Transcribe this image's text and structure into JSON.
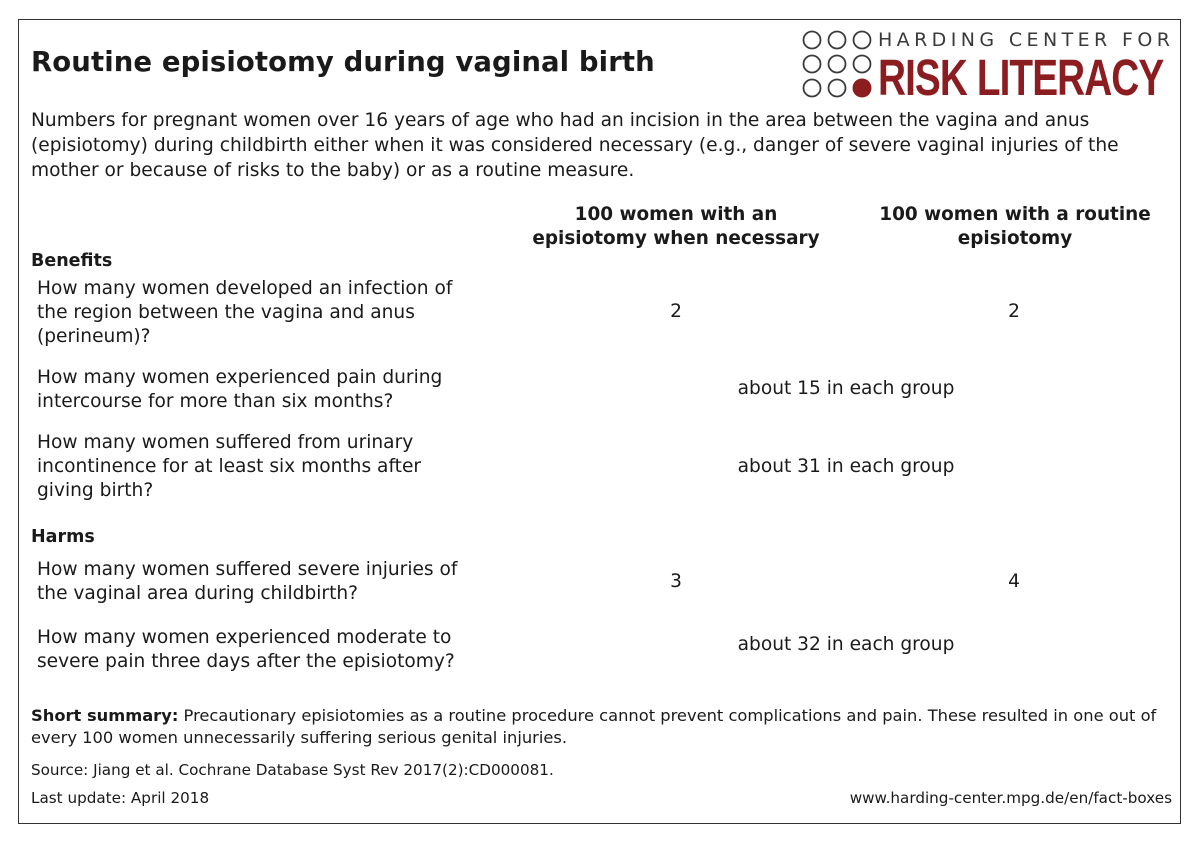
{
  "title": "Routine episiotomy during vaginal birth",
  "logo": {
    "line1": "HARDING CENTER FOR",
    "line2": "RISK LITERACY",
    "brand_color": "#8b1d20"
  },
  "intro": "Numbers for pregnant women over 16 years of age who had an incision in the area between the vagina and anus (episiotomy) during childbirth either when it was considered necessary (e.g., danger of severe vaginal injuries of the mother or because of risks to the baby) or as a routine measure.",
  "columns": {
    "col1_line1": "100 women with an",
    "col1_line2": "episiotomy when necessary",
    "col2_line1": "100 women with a routine",
    "col2_line2": "episiotomy"
  },
  "benefits": {
    "heading": "Benefits",
    "rows": [
      {
        "q_lines": [
          "How many women developed an infection of",
          "the region between the vagina and anus",
          "(perineum)?"
        ],
        "necessary": "2",
        "routine": "2"
      },
      {
        "q_lines": [
          "How many women experienced pain during",
          "intercourse for more than six months?"
        ],
        "both": "about 15 in each group"
      },
      {
        "q_lines": [
          "How many women suffered from urinary",
          "incontinence for at least six months after",
          "giving birth?"
        ],
        "both": "about 31 in each group"
      }
    ]
  },
  "harms": {
    "heading": "Harms",
    "rows": [
      {
        "q_lines": [
          "How many women suffered severe injuries of",
          "the vaginal area during childbirth?"
        ],
        "necessary": "3",
        "routine": "4"
      },
      {
        "q_lines": [
          "How many women experienced moderate to",
          "severe pain three days after the episiotomy?"
        ],
        "both": "about 32 in each group"
      }
    ]
  },
  "summary": {
    "label": "Short summary:",
    "text": "Precautionary episiotomies as a routine procedure cannot prevent complications and pain. These resulted in one out of every 100 women unnecessarily suffering serious genital injuries."
  },
  "source": "Source: Jiang et al. Cochrane Database Syst Rev 2017(2):CD000081.",
  "last_update": "Last update: April 2018",
  "url": "www.harding-center.mpg.de/en/fact-boxes"
}
